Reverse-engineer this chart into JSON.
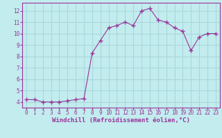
{
  "x": [
    0,
    1,
    2,
    3,
    4,
    5,
    6,
    7,
    8,
    9,
    10,
    11,
    12,
    13,
    14,
    15,
    16,
    17,
    18,
    19,
    20,
    21,
    22,
    23
  ],
  "y": [
    4.2,
    4.2,
    4.0,
    4.0,
    4.0,
    4.1,
    4.2,
    4.3,
    8.3,
    9.4,
    10.5,
    10.7,
    11.0,
    10.7,
    12.0,
    12.2,
    11.2,
    11.0,
    10.5,
    10.2,
    8.5,
    9.7,
    10.0,
    10.0
  ],
  "xlabel": "Windchill (Refroidissement éolien,°C)",
  "line_color": "#993399",
  "marker_color": "#993399",
  "bg_color": "#c2ecee",
  "grid_color": "#aad8dc",
  "axis_label_color": "#993399",
  "tick_color": "#993399",
  "spine_color": "#993399",
  "xlim": [
    -0.5,
    23.5
  ],
  "ylim": [
    3.5,
    12.7
  ],
  "yticks": [
    4,
    5,
    6,
    7,
    8,
    9,
    10,
    11,
    12
  ],
  "xticks": [
    0,
    1,
    2,
    3,
    4,
    5,
    6,
    7,
    8,
    9,
    10,
    11,
    12,
    13,
    14,
    15,
    16,
    17,
    18,
    19,
    20,
    21,
    22,
    23
  ],
  "xlabel_fontsize": 6.5,
  "tick_fontsize": 5.5
}
